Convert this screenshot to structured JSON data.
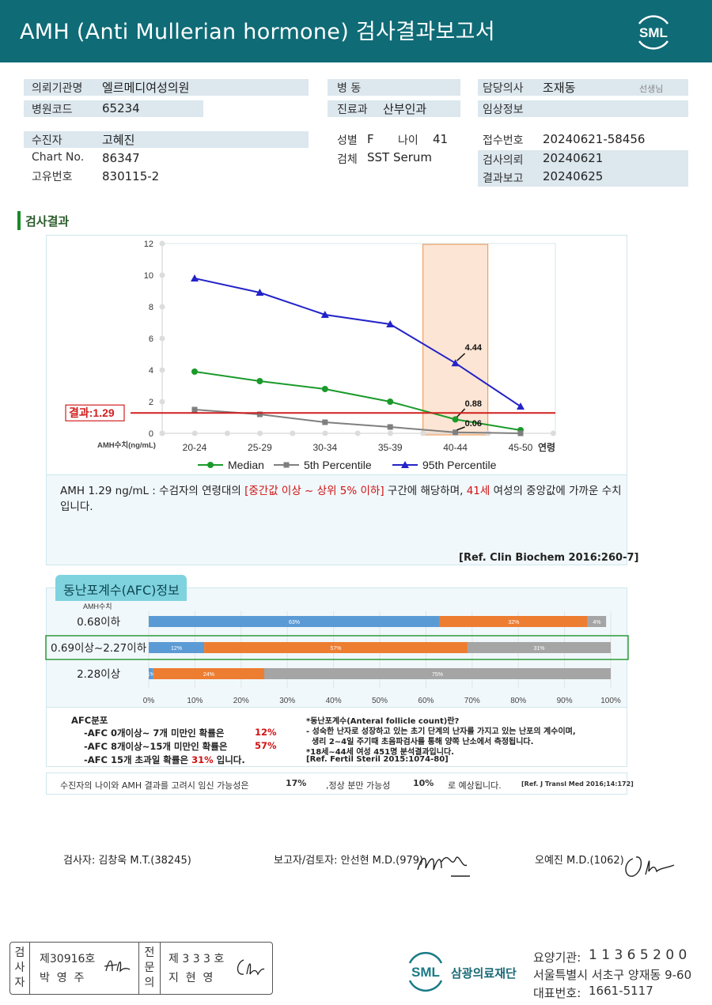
{
  "header": {
    "title": "AMH (Anti Mullerian hormone) 검사결과보고서",
    "logo_text": "SML"
  },
  "info": {
    "institution_label": "의뢰기관명",
    "institution": "엘르메디여성의원",
    "hospital_code_label": "병원코드",
    "hospital_code": "65234",
    "ward_label": "병 동",
    "ward": "",
    "department_label": "진료과",
    "department": "산부인과",
    "doctor_label": "담당의사",
    "doctor": "조재동",
    "doctor_suffix": "선생님",
    "clinical_label": "임상정보",
    "clinical": "",
    "patient_label": "수진자",
    "patient": "고혜진",
    "chart_label": "Chart No.",
    "chart": "86347",
    "id_label": "고유번호",
    "id": "830115-2",
    "sex_label": "성별",
    "sex": "F",
    "age_label": "나이",
    "age": "41",
    "specimen_label": "검체",
    "specimen": "SST Serum",
    "receipt_label": "접수번호",
    "receipt": "20240621-58456",
    "request_label": "검사의뢰",
    "request": "20240621",
    "report_label": "결과보고",
    "report": "20240625"
  },
  "section_title": "검사결과",
  "chart_data": {
    "type": "line",
    "categories": [
      "20-24",
      "25-29",
      "30-34",
      "35-39",
      "40-44",
      "45-50"
    ],
    "series": [
      {
        "name": "Median",
        "values": [
          3.9,
          3.3,
          2.8,
          2.0,
          0.88,
          0.2
        ],
        "color": "#1a9a2a"
      },
      {
        "name": "5th Percentile",
        "values": [
          1.5,
          1.2,
          0.7,
          0.4,
          0.06,
          0.0
        ],
        "color": "#7f7f7f"
      },
      {
        "name": "95th Percentile",
        "values": [
          9.8,
          8.9,
          7.5,
          6.9,
          4.44,
          1.7
        ],
        "color": "#2323c8"
      }
    ],
    "ylim": [
      0,
      12
    ],
    "yticks": [
      "0",
      "2",
      "4",
      "6",
      "8",
      "10",
      "12"
    ],
    "ylabel": "AMH수치(ng/mL)",
    "xlabel": "연령",
    "result_value": 1.29,
    "result_label": "결과:1.29",
    "highlight_category": "40-44",
    "annotations": [
      "4.44",
      "0.88",
      "0.06"
    ]
  },
  "comment": {
    "p1": "AMH  1.29 ng/mL : 수검자의 연령대의 ",
    "range": "[중간값 이상 ~ 상위 5% 이하]",
    "p2": " 구간에 해당하며, ",
    "age": "41세",
    "p3": " 여성의 중앙값에 가까운 수치입니다.",
    "ref": "[Ref. Clin Biochem 2016:260-7]"
  },
  "afc": {
    "tab_title": "동난포계수(AFC)정보",
    "axis_title": "AMH수치",
    "rows": [
      {
        "label": "0.68이하",
        "values": [
          63,
          32,
          4
        ],
        "texts": [
          "63%",
          "32%",
          "4%"
        ]
      },
      {
        "label": "0.69이상~2.27이하",
        "values": [
          12,
          57,
          31
        ],
        "texts": [
          "12%",
          "57%",
          "31%"
        ]
      },
      {
        "label": "2.28이상",
        "values": [
          1,
          24,
          75
        ],
        "texts": [
          "1%",
          "24%",
          "75%"
        ]
      }
    ],
    "xticks": [
      "0%",
      "10%",
      "20%",
      "30%",
      "40%",
      "50%",
      "60%",
      "70%",
      "80%",
      "90%",
      "100%"
    ],
    "colors": [
      "#5b9bd5",
      "#ed7d31",
      "#a5a5a5"
    ],
    "dist_title": "AFC분포",
    "dist1_a": "-AFC  0개이상~ 7개 미만인 확률은",
    "dist1_v": "12%",
    "dist2_a": "-AFC  8개이상~15개 미만인 확률은",
    "dist2_v": "57%",
    "dist3_a": "-AFC  15개 초과일 확률은",
    "dist3_v": "31%",
    "dist3_b": "입니다.",
    "note1": "*동난포계수(Anteral  follicle  count)란?",
    "note2": "- 성숙한  난자로  성장하고  있는  초기  단계의  난자를  가지고  있는  난포의  계수이며,",
    "note3": "  생리 2~4일 주기때 초음파검사를 통해 양쪽 난소에서 측정됩니다.",
    "note4": "*18세~44세 여성 451명 분석결과입니다.",
    "note5": "[Ref. Fertil Steril 2015:1074-80]"
  },
  "probability": {
    "p1": "수진자의  나이와 AMH 결과를 고려시 임신 가능성은",
    "v1": "17%",
    "p2": ",정상 분만 가능성",
    "v2": "10%",
    "p3": "로 예상됩니다.",
    "ref": "[Ref. J Transl Med 2016;14:172]"
  },
  "signatures": {
    "tester": "검사자: 김창욱 M.T.(38245)",
    "reviewer": "보고자/검토자: 안선현 M.D.(979)",
    "doctor": "오예진 M.D.(1062)"
  },
  "stamp": {
    "left_header": "검사자",
    "left_line1": "제30916호",
    "left_line2": "박  영  주",
    "right_header": "전문의",
    "right_line1": "제 3 3 3 호",
    "right_line2": "지  현  영"
  },
  "footer": {
    "org_logo": "SML",
    "org_name": "삼광의료재단",
    "code_label": "요양기관:",
    "code": "1 1 3 6 5 2 0 0",
    "address": "서울특별시 서초구 양재동 9-60",
    "phone_label": "대표번호:",
    "phone": "1661-5117"
  }
}
